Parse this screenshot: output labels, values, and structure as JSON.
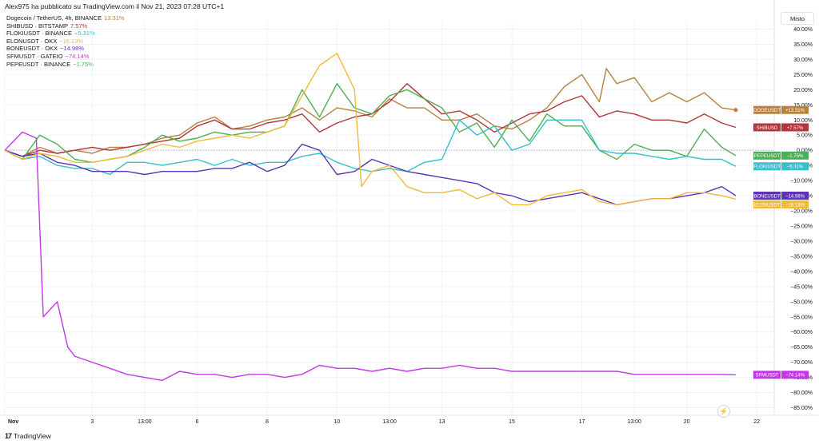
{
  "header": {
    "publisher_line": "Alex975 ha pubblicato su TradingView.com il Nov 21, 2023 07:28 UTC+1"
  },
  "scale_mode_label": "Misto",
  "footer": {
    "logo_text": "17",
    "brand": "TradingView"
  },
  "icons": {
    "bolt": "lightning-icon"
  },
  "legend": [
    {
      "label": "Dogecoin / TetherUS, 4h, BINANCE",
      "value": "13.31%",
      "color": "#b8813f"
    },
    {
      "label": "SHIBUSD · BITSTAMP",
      "value": "7.57%",
      "color": "#b2363a"
    },
    {
      "label": "FLOKIUSDT · BINANCE",
      "value": "−5.31%",
      "color": "#35c1cc"
    },
    {
      "label": "ELONUSDT · OKX",
      "value": "−16.13%",
      "color": "#f5b93a"
    },
    {
      "label": "BONEUSDT · OKX",
      "value": "−14.98%",
      "color": "#5e35b1"
    },
    {
      "label": "SFMUSDT · GATEIO",
      "value": "−74.14%",
      "color": "#c238e8"
    },
    {
      "label": "PEPEUSDT · BINANCE",
      "value": "−1.75%",
      "color": "#4caf50"
    }
  ],
  "chart_data": {
    "type": "line",
    "x_tick_labels": [
      "Nov",
      "3",
      "13:00",
      "6",
      "8",
      "10",
      "13:00",
      "13",
      "15",
      "17",
      "13:00",
      "20",
      "22"
    ],
    "x_tick_positions": [
      0,
      2.5,
      4,
      5.5,
      7.5,
      9.5,
      11,
      12.5,
      14.5,
      16.5,
      18,
      19.5,
      21.5
    ],
    "xlim": [
      0,
      22
    ],
    "ylim": [
      -87.5,
      42.5
    ],
    "yticks": [
      40,
      35,
      30,
      25,
      20,
      15,
      10,
      5,
      0,
      -5,
      -10,
      -15,
      -20,
      -25,
      -30,
      -35,
      -40,
      -45,
      -50,
      -55,
      -60,
      -65,
      -70,
      -75,
      -80,
      -85
    ],
    "ytick_labels": [
      "40.00%",
      "35.00%",
      "30.00%",
      "25.00%",
      "20.00%",
      "15.00%",
      "10.00%",
      "5.00%",
      "0.00%",
      "−5.00%",
      "−10.00%",
      "−15.00%",
      "−20.00%",
      "−25.00%",
      "−30.00%",
      "−35.00%",
      "−40.00%",
      "−45.00%",
      "−50.00%",
      "−55.00%",
      "−60.00%",
      "−65.00%",
      "−70.00%",
      "−75.00%",
      "−80.00%",
      "−85.00%"
    ],
    "zero_line": true,
    "grid": true,
    "series": [
      {
        "name": "DOGEUSDT",
        "badge": "DOGEUSDT",
        "last_label": "+13.31%",
        "color": "#b8813f",
        "last": 13.31,
        "x": [
          0,
          0.5,
          1,
          1.5,
          2,
          2.5,
          3,
          3.5,
          4,
          4.5,
          5,
          5.5,
          6,
          6.5,
          7,
          7.5,
          8,
          8.5,
          9,
          9.5,
          10,
          10.5,
          11,
          11.5,
          12,
          12.5,
          13,
          13.5,
          14,
          14.5,
          15,
          15.5,
          16,
          16.5,
          17,
          17.2,
          17.5,
          18,
          18.5,
          19,
          19.5,
          20,
          20.5,
          20.9
        ],
        "y": [
          0,
          -2,
          1,
          -1,
          0,
          -1,
          1,
          1,
          2,
          4,
          5,
          9,
          11,
          7,
          8,
          10,
          11,
          14,
          10,
          14,
          13,
          11,
          17,
          14,
          14,
          10,
          10,
          12,
          8,
          7,
          10,
          14,
          21,
          25,
          16,
          27,
          22,
          24,
          16,
          19,
          16,
          19,
          14,
          13.31
        ]
      },
      {
        "name": "SHIBUSD",
        "badge": "SHIBUSD",
        "last_label": "+7.57%",
        "color": "#b2363a",
        "last": 7.57,
        "x": [
          0,
          0.5,
          1,
          1.5,
          2,
          2.5,
          3,
          3.5,
          4,
          4.5,
          5,
          5.5,
          6,
          6.5,
          7,
          7.5,
          8,
          8.5,
          9,
          9.5,
          10,
          10.5,
          11,
          11.5,
          12,
          12.5,
          13,
          13.5,
          14,
          14.5,
          15,
          15.5,
          16,
          16.5,
          17,
          17.5,
          18,
          18.5,
          19,
          19.5,
          20,
          20.5,
          20.9
        ],
        "y": [
          0,
          -2,
          0,
          -1,
          0,
          1,
          0,
          1,
          2,
          3,
          4,
          8,
          10,
          7,
          7,
          9,
          10,
          12,
          6,
          9,
          11,
          12,
          16,
          22,
          17,
          12,
          13,
          10,
          6,
          9,
          12,
          13,
          16,
          18,
          11,
          13,
          12,
          10,
          10,
          9,
          12,
          9,
          7.57
        ]
      },
      {
        "name": "PEPEUSDT",
        "badge": "PEPEUSDT",
        "last_label": "−1.75%",
        "color": "#4caf50",
        "last": -1.75,
        "x": [
          0,
          0.5,
          1,
          1.5,
          2,
          2.5,
          3,
          3.5,
          4,
          4.5,
          5,
          5.5,
          6,
          6.5,
          7,
          7.5,
          8,
          8.5,
          9,
          9.5,
          10,
          10.5,
          11,
          11.5,
          12,
          12.5,
          13,
          13.5,
          14,
          14.5,
          15,
          15.5,
          16,
          16.5,
          17,
          17.5,
          18,
          18.5,
          19,
          19.5,
          20,
          20.5,
          20.9
        ],
        "y": [
          0,
          -3,
          5,
          2,
          -3,
          -4,
          -3,
          -2,
          1,
          5,
          3,
          4,
          6,
          5,
          6,
          6,
          8,
          20,
          11,
          22,
          14,
          12,
          18,
          20,
          17,
          14,
          6,
          9,
          1,
          10,
          3,
          12,
          8,
          8,
          0,
          -3,
          2,
          0,
          0,
          -2,
          7,
          1,
          -1.75
        ]
      },
      {
        "name": "FLOKIUSDT",
        "badge": "FLOKIUSDT",
        "last_label": "−5.31%",
        "color": "#35c1cc",
        "last": -5.31,
        "x": [
          0,
          0.5,
          1,
          1.5,
          2,
          2.5,
          3,
          3.5,
          4,
          4.5,
          5,
          5.5,
          6,
          6.5,
          7,
          7.5,
          8,
          8.5,
          9,
          9.5,
          10,
          10.5,
          11,
          11.5,
          12,
          12.5,
          13,
          13.5,
          14,
          14.5,
          15,
          15.5,
          16,
          16.5,
          17,
          17.5,
          18,
          18.5,
          19,
          19.5,
          20,
          20.5,
          20.9
        ],
        "y": [
          0,
          -3,
          -2,
          -5,
          -6,
          -6,
          -8,
          -4,
          -4,
          -5,
          -4,
          -3,
          -5,
          -3,
          -5,
          -4,
          -4,
          -2,
          -1,
          -4,
          -6,
          -7,
          -6,
          -7,
          -4,
          -3,
          10,
          5,
          8,
          0,
          2,
          10,
          10,
          10,
          0,
          -1,
          -1,
          -2,
          -3,
          -2,
          -3,
          -3,
          -5.31
        ]
      },
      {
        "name": "BONEUSDT",
        "badge": "BONEUSDT",
        "last_label": "−14.98%",
        "color": "#5e35b1",
        "last": -14.98,
        "x": [
          0,
          0.5,
          1,
          1.5,
          2,
          2.5,
          3,
          3.5,
          4,
          4.5,
          5,
          5.5,
          6,
          6.5,
          7,
          7.5,
          8,
          8.5,
          9,
          9.5,
          10,
          10.5,
          11,
          11.5,
          12,
          12.5,
          13,
          13.5,
          14,
          14.5,
          15,
          15.5,
          16,
          16.5,
          17,
          17.5,
          18,
          18.5,
          19,
          19.5,
          20,
          20.5,
          20.9
        ],
        "y": [
          0,
          -2,
          -1,
          -4,
          -5,
          -7,
          -7,
          -7,
          -8,
          -7,
          -7,
          -7,
          -6,
          -6,
          -4,
          -7,
          -5,
          2,
          0,
          -8,
          -7,
          -3,
          -5,
          -7,
          -8,
          -9,
          -10,
          -11,
          -14,
          -15,
          -17,
          -16,
          -15,
          -14,
          -16,
          -18,
          -17,
          -16,
          -16,
          -15,
          -14,
          -12,
          -14.98
        ]
      },
      {
        "name": "ELONUSDT",
        "badge": "ELONUSDT",
        "last_label": "−16.13%",
        "color": "#f5b93a",
        "last": -16.13,
        "x": [
          0,
          0.5,
          1,
          1.5,
          2,
          2.5,
          3,
          3.5,
          4,
          4.5,
          5,
          5.5,
          6,
          6.5,
          7,
          7.5,
          8,
          8.5,
          9,
          9.5,
          10,
          10.2,
          10.5,
          11,
          11.5,
          12,
          12.5,
          13,
          13.5,
          14,
          14.5,
          15,
          15.5,
          16,
          16.5,
          17,
          17.5,
          18,
          18.5,
          19,
          19.5,
          20,
          20.5,
          20.9
        ],
        "y": [
          0,
          -3,
          -1,
          -2,
          -4,
          -4,
          -3,
          -2,
          0,
          2,
          1,
          3,
          4,
          5,
          4,
          6,
          8,
          18,
          28,
          32,
          20,
          -12,
          -7,
          -5,
          -12,
          -14,
          -14,
          -13,
          -16,
          -14,
          -18,
          -18,
          -15,
          -14,
          -13,
          -17,
          -18,
          -17,
          -16,
          -16,
          -14,
          -14,
          -15,
          -16.13
        ]
      },
      {
        "name": "SFMUSDT",
        "badge": "SFMUSDT",
        "last_label": "−74.14%",
        "color": "#c238e8",
        "last": -74.14,
        "x": [
          0,
          0.5,
          0.9,
          1.1,
          1.5,
          1.8,
          2,
          2.5,
          3,
          3.5,
          4,
          4.5,
          5,
          5.5,
          6,
          6.5,
          7,
          7.5,
          8,
          8.5,
          9,
          9.5,
          10,
          10.5,
          11,
          11.5,
          12,
          12.5,
          13,
          13.5,
          14,
          14.5,
          15,
          15.5,
          16,
          16.5,
          17,
          17.5,
          18,
          18.5,
          19,
          19.5,
          20,
          20.5,
          20.9
        ],
        "y": [
          0,
          6,
          4,
          -55,
          -50,
          -65,
          -68,
          -70,
          -72,
          -74,
          -75,
          -76,
          -73,
          -74,
          -74,
          -75,
          -74,
          -74,
          -75,
          -74,
          -71,
          -72,
          -72,
          -73,
          -72,
          -73,
          -72,
          -72,
          -71,
          -72,
          -72,
          -73,
          -73,
          -73,
          -73,
          -73,
          -73,
          -73,
          -74,
          -74,
          -74,
          -74,
          -74,
          -74,
          -74.14
        ]
      }
    ]
  }
}
